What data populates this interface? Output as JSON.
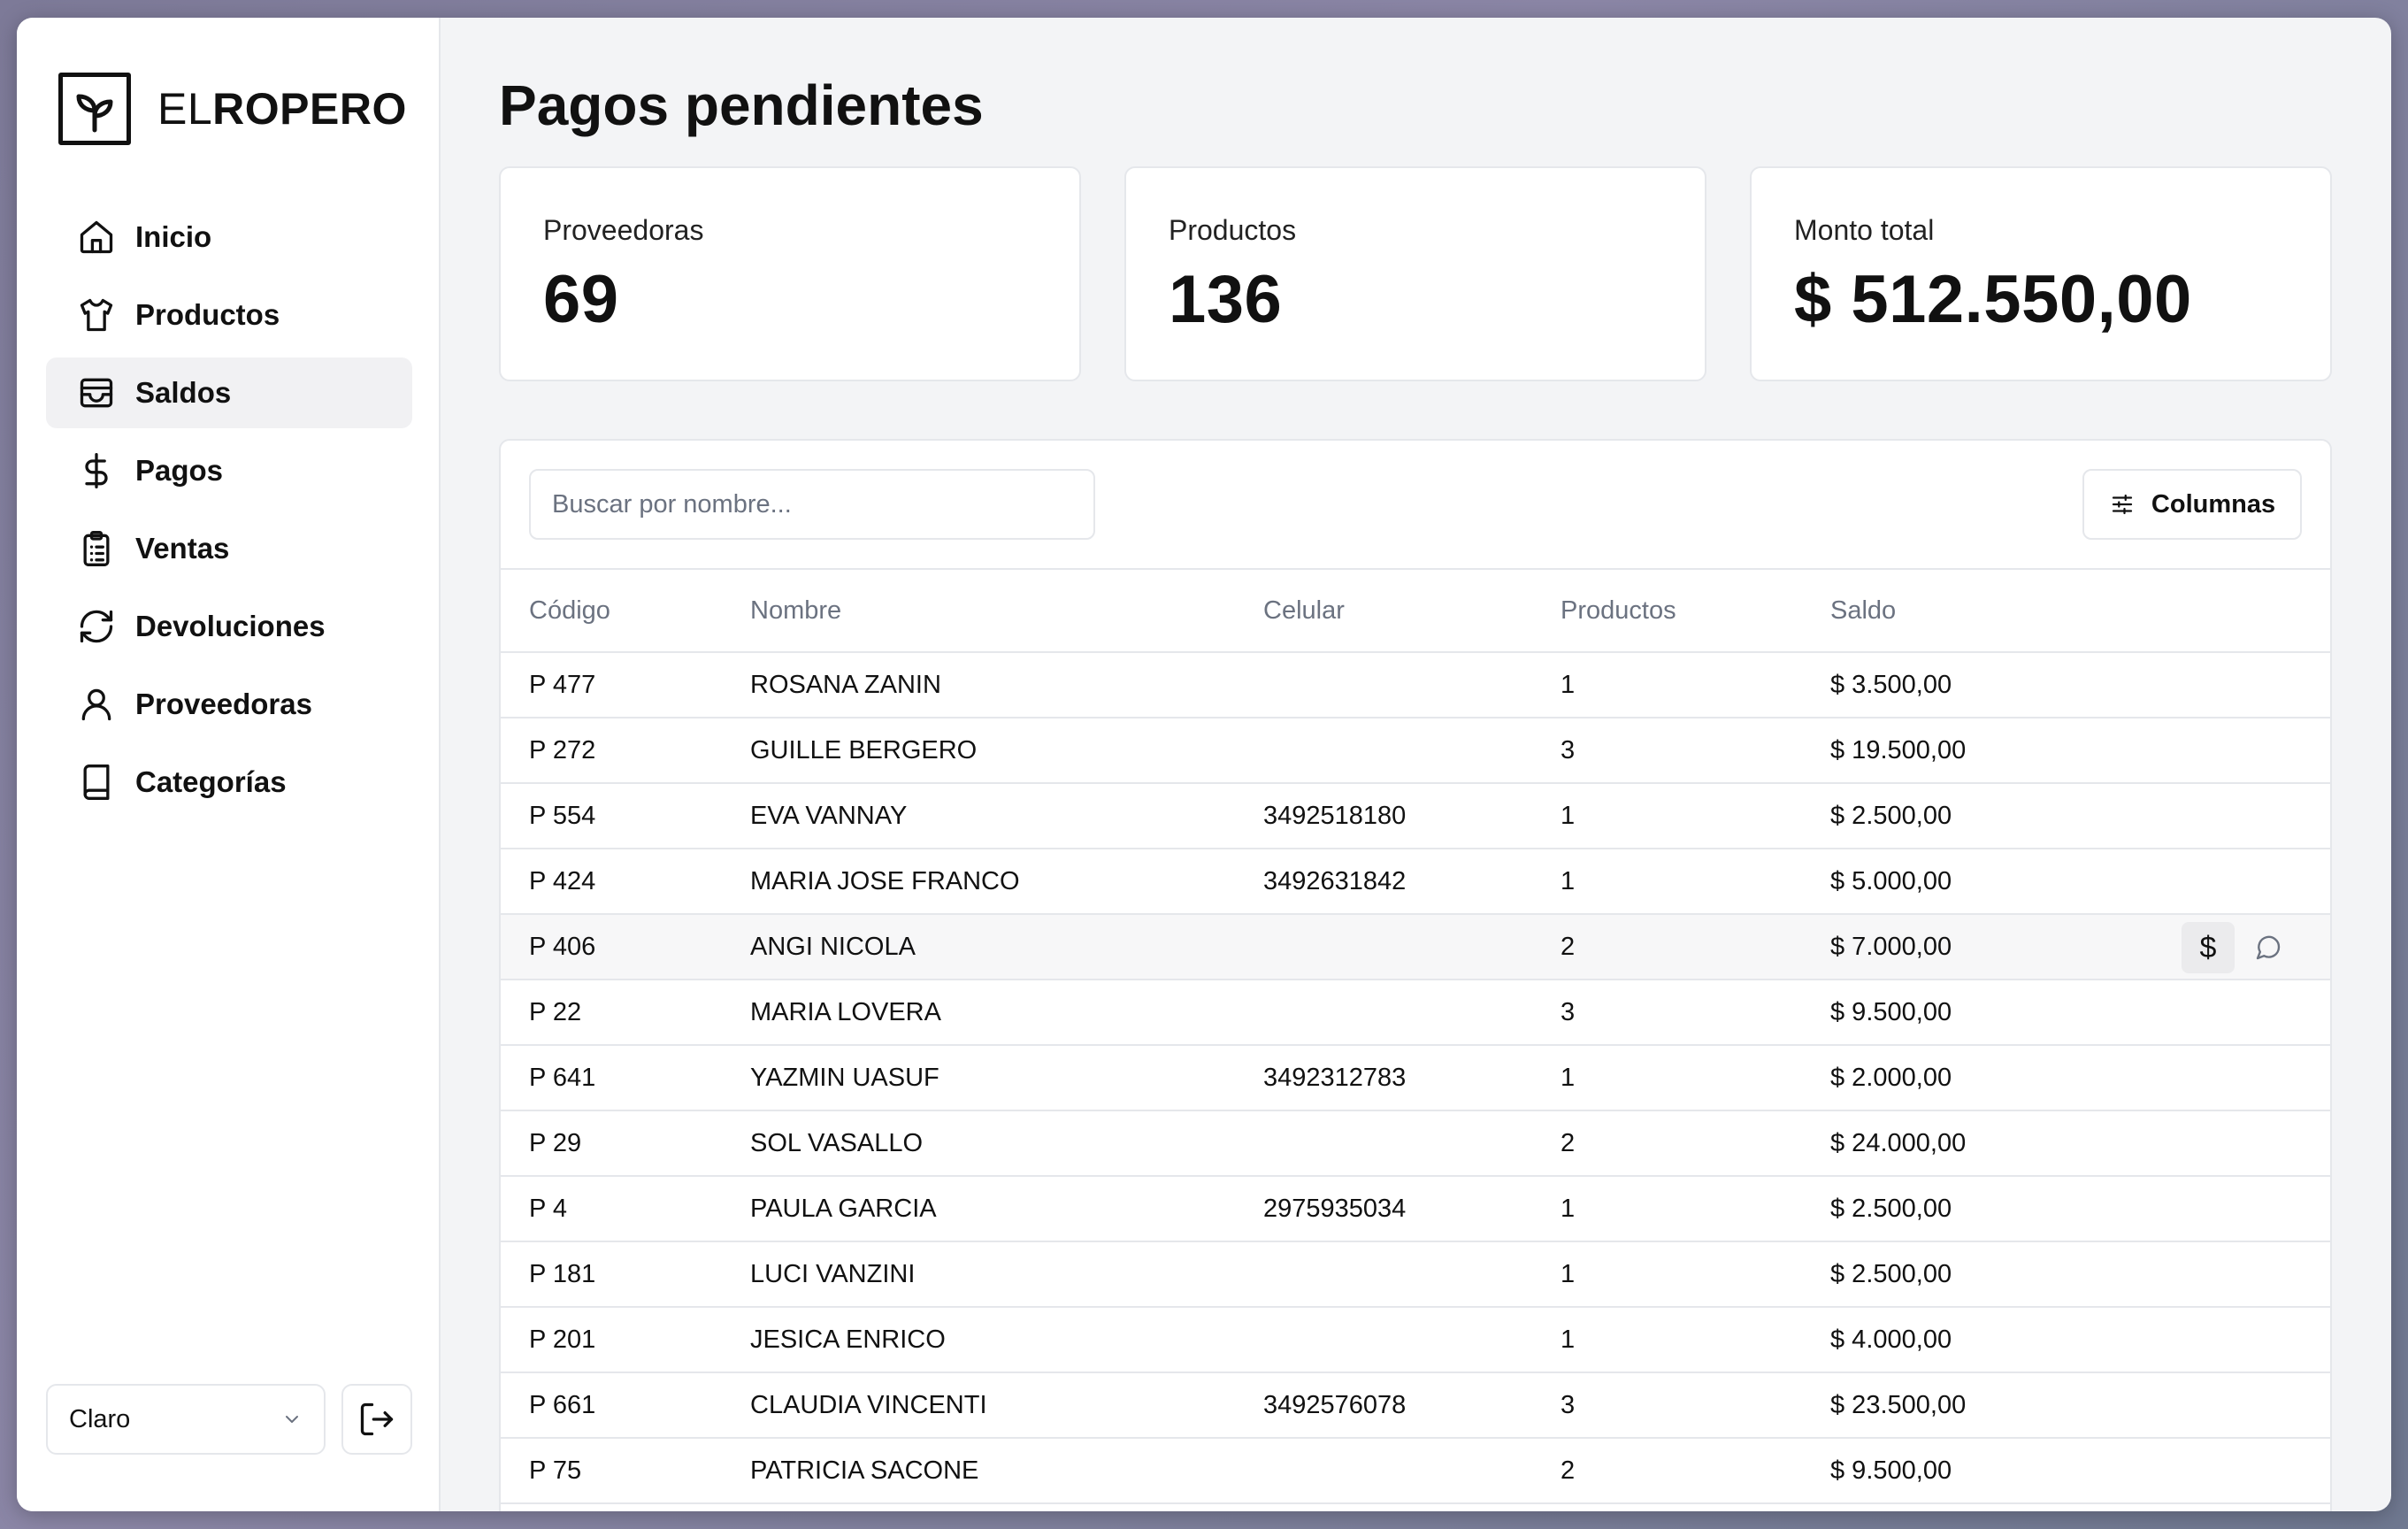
{
  "brand": {
    "light": "EL",
    "bold": "ROPERO"
  },
  "sidebar": {
    "items": [
      {
        "label": "Inicio",
        "icon": "home-icon"
      },
      {
        "label": "Productos",
        "icon": "shirt-icon"
      },
      {
        "label": "Saldos",
        "icon": "wallet-icon",
        "active": true
      },
      {
        "label": "Pagos",
        "icon": "dollar-icon"
      },
      {
        "label": "Ventas",
        "icon": "clipboard-list-icon"
      },
      {
        "label": "Devoluciones",
        "icon": "refresh-icon"
      },
      {
        "label": "Proveedoras",
        "icon": "user-icon"
      },
      {
        "label": "Categorías",
        "icon": "book-icon"
      }
    ],
    "theme": "Claro"
  },
  "page": {
    "title": "Pagos pendientes"
  },
  "stats": [
    {
      "label": "Proveedoras",
      "value": "69"
    },
    {
      "label": "Productos",
      "value": "136"
    },
    {
      "label": "Monto total",
      "value": "$ 512.550,00"
    }
  ],
  "table": {
    "search_placeholder": "Buscar por nombre...",
    "columns_label": "Columnas",
    "headers": [
      "Código",
      "Nombre",
      "Celular",
      "Productos",
      "Saldo"
    ],
    "rows": [
      {
        "codigo": "P 477",
        "nombre": "ROSANA ZANIN",
        "celular": "",
        "productos": "1",
        "saldo": "$ 3.500,00"
      },
      {
        "codigo": "P 272",
        "nombre": "GUILLE BERGERO",
        "celular": "",
        "productos": "3",
        "saldo": "$ 19.500,00"
      },
      {
        "codigo": "P 554",
        "nombre": "EVA VANNAY",
        "celular": "3492518180",
        "productos": "1",
        "saldo": "$ 2.500,00"
      },
      {
        "codigo": "P 424",
        "nombre": "MARIA JOSE FRANCO",
        "celular": "3492631842",
        "productos": "1",
        "saldo": "$ 5.000,00"
      },
      {
        "codigo": "P 406",
        "nombre": "ANGI NICOLA",
        "celular": "",
        "productos": "2",
        "saldo": "$ 7.000,00"
      },
      {
        "codigo": "P 22",
        "nombre": "MARIA LOVERA",
        "celular": "",
        "productos": "3",
        "saldo": "$ 9.500,00"
      },
      {
        "codigo": "P 641",
        "nombre": "YAZMIN UASUF",
        "celular": "3492312783",
        "productos": "1",
        "saldo": "$ 2.000,00"
      },
      {
        "codigo": "P 29",
        "nombre": "SOL VASALLO",
        "celular": "",
        "productos": "2",
        "saldo": "$ 24.000,00"
      },
      {
        "codigo": "P 4",
        "nombre": "PAULA GARCIA",
        "celular": "2975935034",
        "productos": "1",
        "saldo": "$ 2.500,00"
      },
      {
        "codigo": "P 181",
        "nombre": "LUCI VANZINI",
        "celular": "",
        "productos": "1",
        "saldo": "$ 2.500,00"
      },
      {
        "codigo": "P 201",
        "nombre": "JESICA ENRICO",
        "celular": "",
        "productos": "1",
        "saldo": "$ 4.000,00"
      },
      {
        "codigo": "P 661",
        "nombre": "CLAUDIA VINCENTI",
        "celular": "3492576078",
        "productos": "3",
        "saldo": "$ 23.500,00"
      },
      {
        "codigo": "P 75",
        "nombre": "PATRICIA SACONE",
        "celular": "",
        "productos": "2",
        "saldo": "$ 9.500,00"
      }
    ],
    "hovered_row": 4,
    "row_actions": {
      "pay_symbol": "$"
    }
  }
}
